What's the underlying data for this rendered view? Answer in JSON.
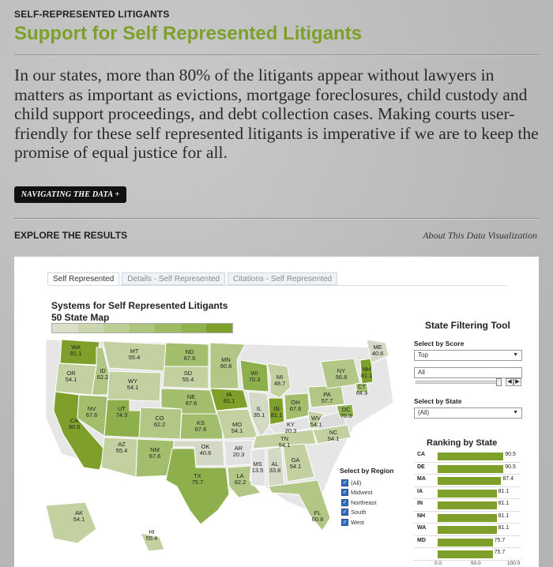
{
  "header": {
    "section_label": "SELF-REPRESENTED LITIGANTS",
    "title": "Support for Self Represented Litigants",
    "intro": "In our states, more than 80% of the litigants appear without lawyers in matters as important as evictions, mortgage foreclosures, child custody and child support proceedings, and debt collection cases. Making courts user-friendly for these self represented litigants is imperative if we are to keep the promise of equal justice for all.",
    "nav_button": "NAVIGATING THE DATA +"
  },
  "explore": {
    "label": "EXPLORE THE RESULTS",
    "about_link": "About This Data Visualization"
  },
  "viz": {
    "tabs": [
      {
        "label": "Self Represented",
        "active": true
      },
      {
        "label": "Details - Self Represented",
        "active": false
      },
      {
        "label": "Citations - Self Represented",
        "active": false
      }
    ],
    "map_title_line1": "Systems for Self Represented Litigants",
    "map_title_line2": "50 State Map",
    "legend_colors": [
      "#d9dfc9",
      "#cbd6ae",
      "#bccd95",
      "#adc47d",
      "#9ebb64",
      "#8fb24c",
      "#7ea02a"
    ],
    "states": [
      {
        "code": "WA",
        "value": "81.1"
      },
      {
        "code": "OR",
        "value": "54.1"
      },
      {
        "code": "CA",
        "value": "90.5"
      },
      {
        "code": "ID",
        "value": "62.2"
      },
      {
        "code": "NV",
        "value": "67.6"
      },
      {
        "code": "MT",
        "value": "55.4"
      },
      {
        "code": "WY",
        "value": "54.1"
      },
      {
        "code": "UT",
        "value": "74.3"
      },
      {
        "code": "AZ",
        "value": "55.4"
      },
      {
        "code": "CO",
        "value": "62.2"
      },
      {
        "code": "NM",
        "value": "67.6"
      },
      {
        "code": "ND",
        "value": "67.6"
      },
      {
        "code": "SD",
        "value": "55.4"
      },
      {
        "code": "NE",
        "value": "67.6"
      },
      {
        "code": "KS",
        "value": "67.6"
      },
      {
        "code": "OK",
        "value": "40.6"
      },
      {
        "code": "TX",
        "value": "75.7"
      },
      {
        "code": "MN",
        "value": "60.8"
      },
      {
        "code": "IA",
        "value": "81.1"
      },
      {
        "code": "MO",
        "value": "54.1"
      },
      {
        "code": "AR",
        "value": "20.3"
      },
      {
        "code": "LA",
        "value": "62.2"
      },
      {
        "code": "WI",
        "value": "70.3"
      },
      {
        "code": "IL",
        "value": "35.1"
      },
      {
        "code": "MI",
        "value": "48.7"
      },
      {
        "code": "IN",
        "value": "81.1"
      },
      {
        "code": "OH",
        "value": "67.6"
      },
      {
        "code": "KY",
        "value": "20.3"
      },
      {
        "code": "TN",
        "value": "54.1"
      },
      {
        "code": "MS",
        "value": "13.5"
      },
      {
        "code": "AL",
        "value": "33.8"
      },
      {
        "code": "GA",
        "value": "54.1"
      },
      {
        "code": "FL",
        "value": "60.8"
      },
      {
        "code": "WV",
        "value": "54.1"
      },
      {
        "code": "NC",
        "value": "54.1"
      },
      {
        "code": "PA",
        "value": "57.7"
      },
      {
        "code": "NY",
        "value": "56.8"
      },
      {
        "code": "DC",
        "value": "70.3"
      },
      {
        "code": "CT",
        "value": "64.9"
      },
      {
        "code": "NH",
        "value": "81.1"
      },
      {
        "code": "ME",
        "value": "40.6"
      },
      {
        "code": "AK",
        "value": "54.1"
      },
      {
        "code": "HI",
        "value": "55.4"
      }
    ],
    "region_filter": {
      "title": "Select by Region",
      "options": [
        "(All)",
        "Midwest",
        "Northeast",
        "South",
        "West"
      ]
    },
    "filter_tool": {
      "title": "State Filtering Tool",
      "score_label": "Select by Score",
      "score_value": "Top",
      "all_input": "All",
      "state_label": "Select by State",
      "state_value": "(All)"
    },
    "ranking": {
      "title": "Ranking by State",
      "rows": [
        {
          "code": "CA",
          "value": 90.5,
          "label": "90.5"
        },
        {
          "code": "DE",
          "value": 90.5,
          "label": "90.5"
        },
        {
          "code": "MA",
          "value": 87.4,
          "label": "87.4"
        },
        {
          "code": "IA",
          "value": 81.1,
          "label": "81.1"
        },
        {
          "code": "IN",
          "value": 81.1,
          "label": "81.1"
        },
        {
          "code": "NH",
          "value": 81.1,
          "label": "81.1"
        },
        {
          "code": "WA",
          "value": 81.1,
          "label": "81.1"
        },
        {
          "code": "MD",
          "value": 75.7,
          "label": "75.7"
        },
        {
          "code": "",
          "value": 75.7,
          "label": "75.7"
        }
      ],
      "axis_ticks": [
        "0.0",
        "50.0",
        "100.0"
      ],
      "axis_max": 100
    }
  }
}
